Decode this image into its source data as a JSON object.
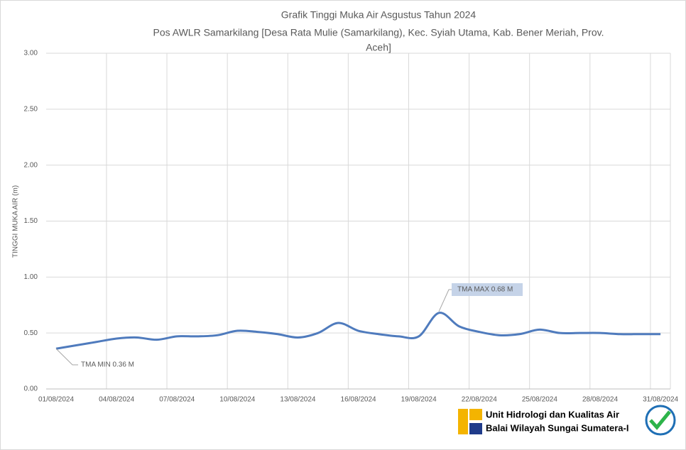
{
  "chart_data": {
    "type": "line",
    "title": "Grafik Tinggi Muka Air Asgustus Tahun 2024",
    "subtitle": [
      "Pos AWLR Samarkilang [Desa Rata Mulie (Samarkilang), Kec. Syiah Utama, Kab. Bener Meriah, Prov.",
      "Aceh]"
    ],
    "y_label": "TINGGI MUKA AIR (m)",
    "categories": [
      "01/08/2024",
      "02/08/2024",
      "03/08/2024",
      "04/08/2024",
      "05/08/2024",
      "06/08/2024",
      "07/08/2024",
      "08/08/2024",
      "09/08/2024",
      "10/08/2024",
      "11/08/2024",
      "12/08/2024",
      "13/08/2024",
      "14/08/2024",
      "15/08/2024",
      "16/08/2024",
      "17/08/2024",
      "18/08/2024",
      "19/08/2024",
      "20/08/2024",
      "21/08/2024",
      "22/08/2024",
      "23/08/2024",
      "24/08/2024",
      "25/08/2024",
      "26/08/2024",
      "27/08/2024",
      "28/08/2024",
      "29/08/2024",
      "30/08/2024",
      "31/08/2024"
    ],
    "series": [
      {
        "name": "TMA",
        "color": "#4f7bbd",
        "values": [
          0.36,
          0.39,
          0.42,
          0.45,
          0.46,
          0.44,
          0.47,
          0.47,
          0.48,
          0.52,
          0.51,
          0.49,
          0.46,
          0.5,
          0.59,
          0.52,
          0.49,
          0.47,
          0.47,
          0.68,
          0.56,
          0.51,
          0.48,
          0.49,
          0.53,
          0.5,
          0.5,
          0.5,
          0.49,
          0.49,
          0.49
        ]
      }
    ],
    "ylim": [
      0,
      3
    ],
    "yticks": [
      {
        "value": 0,
        "label": "0.00"
      },
      {
        "value": 0.5,
        "label": "0.50"
      },
      {
        "value": 1,
        "label": "1.00"
      },
      {
        "value": 1.5,
        "label": "1.50"
      },
      {
        "value": 2,
        "label": "2.00"
      },
      {
        "value": 2.5,
        "label": "2.50"
      },
      {
        "value": 3,
        "label": "3.00"
      }
    ],
    "grid": true,
    "annotations": [
      {
        "text": "TMA MIN  0.36  M",
        "index": 0
      },
      {
        "text": "TMA MAX  0.68  M",
        "index": 19
      }
    ],
    "footer": [
      "Unit Hidrologi dan Kualitas Air",
      "Balai Wilayah Sungai Sumatera-I"
    ]
  }
}
